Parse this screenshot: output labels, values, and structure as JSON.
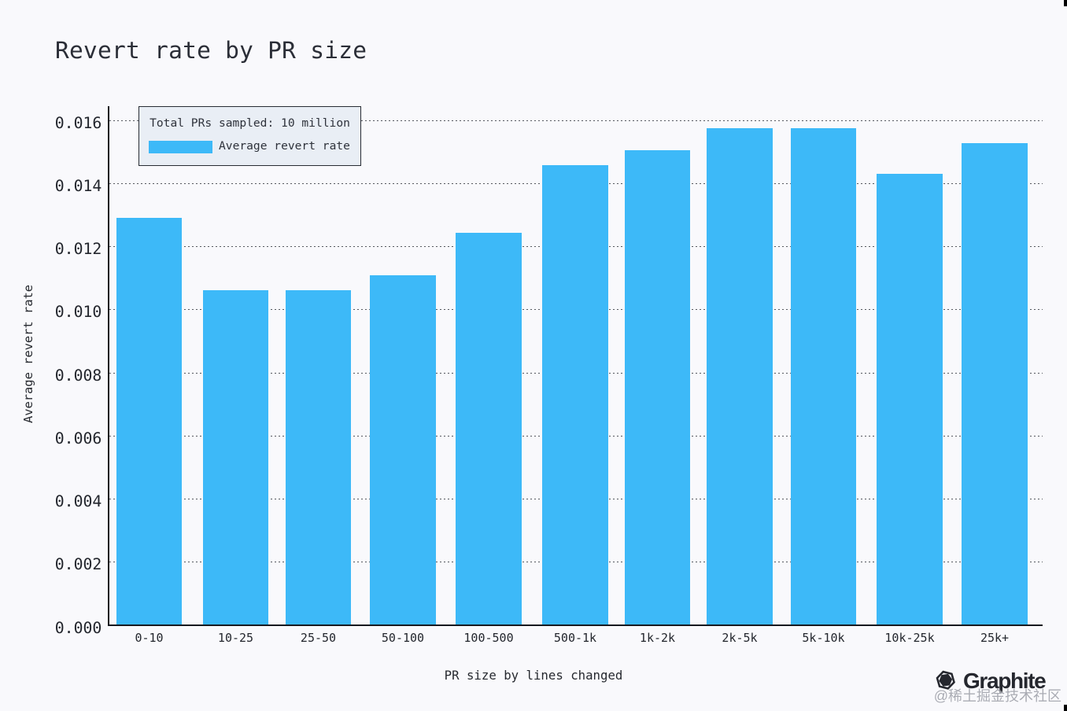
{
  "chart_data": {
    "type": "bar",
    "title": "Revert rate by PR size",
    "categories": [
      "0-10",
      "10-25",
      "25-50",
      "50-100",
      "100-500",
      "500-1k",
      "1k-2k",
      "2k-5k",
      "5k-10k",
      "10k-25k",
      "25k+"
    ],
    "values": [
      0.01288,
      0.0106,
      0.0106,
      0.01107,
      0.01241,
      0.01455,
      0.01503,
      0.01573,
      0.01574,
      0.01427,
      0.01526
    ],
    "xlabel": "PR size by lines changed",
    "ylabel": "Average revert rate",
    "ylim": [
      0,
      0.01645
    ],
    "yticks": [
      0,
      0.002,
      0.004,
      0.006,
      0.008,
      0.01,
      0.012,
      0.014,
      0.016
    ],
    "ytick_labels": [
      "0.000",
      "0.002",
      "0.004",
      "0.006",
      "0.008",
      "0.010",
      "0.012",
      "0.014",
      "0.016"
    ],
    "grid": "horizontal-dotted",
    "legend_position": "upper-left",
    "legend": {
      "title": "Total PRs sampled: 10 million",
      "entries": [
        {
          "label": "Average revert rate",
          "color": "#3db9f8"
        }
      ]
    },
    "bar_color": "#3db9f8"
  },
  "branding": {
    "name": "Graphite",
    "icon": "graphite-hexagon-icon"
  },
  "watermark": {
    "text": "@稀土掘金技术社区"
  },
  "colors": {
    "background": "#f9f9fc",
    "bar": "#3db9f8",
    "axis": "#17191f",
    "grid": "#54575e",
    "text": "#23262d",
    "legend_background": "#e9eef5"
  }
}
